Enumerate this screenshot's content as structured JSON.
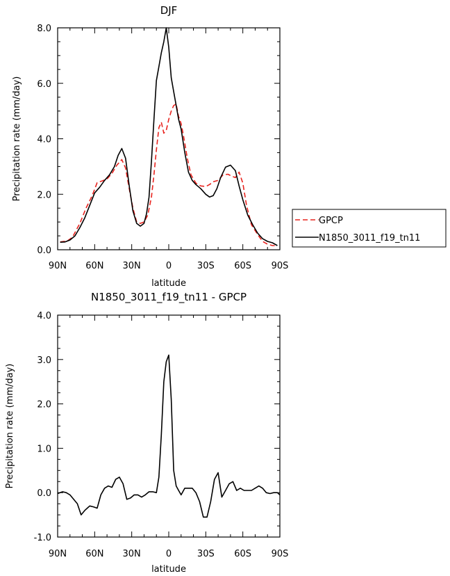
{
  "chart_data": [
    {
      "type": "line",
      "title": "DJF",
      "xlabel": "latitude",
      "ylabel": "Precipitation rate (mm/day)",
      "xlim": [
        90,
        -90
      ],
      "ylim": [
        0,
        8
      ],
      "xticks": [
        90,
        60,
        30,
        0,
        -30,
        -60,
        -90
      ],
      "xtick_labels": [
        "90N",
        "60N",
        "30N",
        "0",
        "30S",
        "60S",
        "90S"
      ],
      "yticks": [
        0,
        2,
        4,
        6,
        8
      ],
      "ytick_labels": [
        "0.0",
        "2.0",
        "4.0",
        "6.0",
        "8.0"
      ],
      "grid": false,
      "legend": "right",
      "series": [
        {
          "name": "GPCP",
          "color": "#e8231e",
          "style": "dashed",
          "x": [
            88,
            82,
            78,
            72,
            67,
            62,
            58,
            54,
            50,
            46,
            42,
            38,
            35,
            32,
            29,
            26,
            23,
            20,
            17,
            14,
            12,
            10,
            8,
            6,
            4,
            2,
            0,
            -2,
            -4,
            -6,
            -8,
            -10,
            -12,
            -15,
            -18,
            -22,
            -26,
            -30,
            -33,
            -36,
            -40,
            -44,
            -48,
            -51,
            -54,
            -57,
            -60,
            -63,
            -67,
            -72,
            -76,
            -80,
            -84,
            -88
          ],
          "y": [
            0.28,
            0.32,
            0.45,
            0.95,
            1.5,
            1.95,
            2.42,
            2.48,
            2.55,
            2.75,
            3.05,
            3.25,
            2.95,
            2.2,
            1.5,
            1.0,
            0.95,
            1.0,
            1.25,
            1.9,
            2.7,
            3.6,
            4.4,
            4.6,
            4.2,
            4.3,
            4.7,
            5.0,
            5.2,
            5.25,
            4.8,
            4.55,
            4.1,
            3.3,
            2.7,
            2.4,
            2.3,
            2.28,
            2.35,
            2.45,
            2.5,
            2.7,
            2.72,
            2.65,
            2.6,
            2.8,
            2.4,
            1.6,
            0.9,
            0.55,
            0.3,
            0.2,
            0.15,
            0.15
          ]
        },
        {
          "name": "N1850_3011_f19_tn11",
          "color": "#000000",
          "style": "solid",
          "x": [
            88,
            84,
            80,
            76,
            72,
            68,
            64,
            60,
            56,
            52,
            48,
            44,
            41,
            38,
            35,
            32,
            29,
            26,
            23,
            20,
            18,
            16,
            14,
            12,
            10,
            8,
            6,
            4,
            2,
            0,
            -2,
            -4,
            -6,
            -8,
            -10,
            -13,
            -16,
            -19,
            -22,
            -26,
            -30,
            -33,
            -36,
            -39,
            -42,
            -46,
            -50,
            -54,
            -57,
            -60,
            -64,
            -68,
            -72,
            -76,
            -80,
            -84,
            -88
          ],
          "y": [
            0.27,
            0.28,
            0.35,
            0.5,
            0.8,
            1.15,
            1.6,
            2.05,
            2.25,
            2.5,
            2.7,
            3.0,
            3.4,
            3.65,
            3.3,
            2.3,
            1.4,
            0.95,
            0.85,
            0.95,
            1.3,
            1.9,
            3.2,
            4.7,
            6.1,
            6.6,
            7.1,
            7.5,
            8.0,
            7.3,
            6.2,
            5.7,
            5.2,
            4.7,
            4.35,
            3.5,
            2.8,
            2.5,
            2.35,
            2.2,
            2.0,
            1.9,
            1.95,
            2.2,
            2.6,
            2.98,
            3.05,
            2.85,
            2.3,
            1.8,
            1.25,
            0.9,
            0.6,
            0.4,
            0.3,
            0.25,
            0.15
          ]
        }
      ]
    },
    {
      "type": "line",
      "title": "N1850_3011_f19_tn11 - GPCP",
      "xlabel": "latitude",
      "ylabel": "Precipitation rate (mm/day)",
      "xlim": [
        90,
        -90
      ],
      "ylim": [
        -1,
        4
      ],
      "xticks": [
        90,
        60,
        30,
        0,
        -30,
        -60,
        -90
      ],
      "xtick_labels": [
        "90N",
        "60N",
        "30N",
        "0",
        "30S",
        "60S",
        "90S"
      ],
      "yticks": [
        -1,
        0,
        1,
        2,
        3,
        4
      ],
      "ytick_labels": [
        "-1.0",
        "0.0",
        "1.0",
        "2.0",
        "3.0",
        "4.0"
      ],
      "grid": false,
      "series": [
        {
          "name": "",
          "color": "#000000",
          "style": "solid",
          "x": [
            90,
            86,
            83,
            80,
            77,
            74,
            71,
            68,
            64,
            61,
            58,
            55,
            52,
            49,
            46,
            43,
            40,
            37,
            34,
            31,
            28,
            25,
            22,
            19,
            16,
            13,
            10,
            8,
            6,
            4,
            2,
            0,
            -2,
            -4,
            -6,
            -8,
            -10,
            -13,
            -16,
            -19,
            -22,
            -25,
            -28,
            -31,
            -34,
            -37,
            -40,
            -43,
            -46,
            -49,
            -52,
            -55,
            -58,
            -61,
            -64,
            -67,
            -70,
            -73,
            -76,
            -79,
            -82,
            -85,
            -88,
            -90
          ],
          "y": [
            -0.02,
            0.02,
            0.0,
            -0.05,
            -0.15,
            -0.25,
            -0.5,
            -0.4,
            -0.3,
            -0.32,
            -0.35,
            -0.05,
            0.1,
            0.15,
            0.12,
            0.3,
            0.35,
            0.2,
            -0.15,
            -0.12,
            -0.05,
            -0.05,
            -0.1,
            -0.05,
            0.02,
            0.02,
            0.0,
            0.35,
            1.3,
            2.5,
            2.95,
            3.1,
            2.1,
            0.5,
            0.15,
            0.05,
            -0.05,
            0.1,
            0.1,
            0.1,
            0.0,
            -0.2,
            -0.55,
            -0.55,
            -0.2,
            0.3,
            0.45,
            -0.1,
            0.05,
            0.2,
            0.25,
            0.05,
            0.1,
            0.05,
            0.05,
            0.05,
            0.1,
            0.15,
            0.1,
            0.0,
            -0.02,
            0.0,
            0.0,
            -0.05
          ]
        }
      ]
    }
  ]
}
